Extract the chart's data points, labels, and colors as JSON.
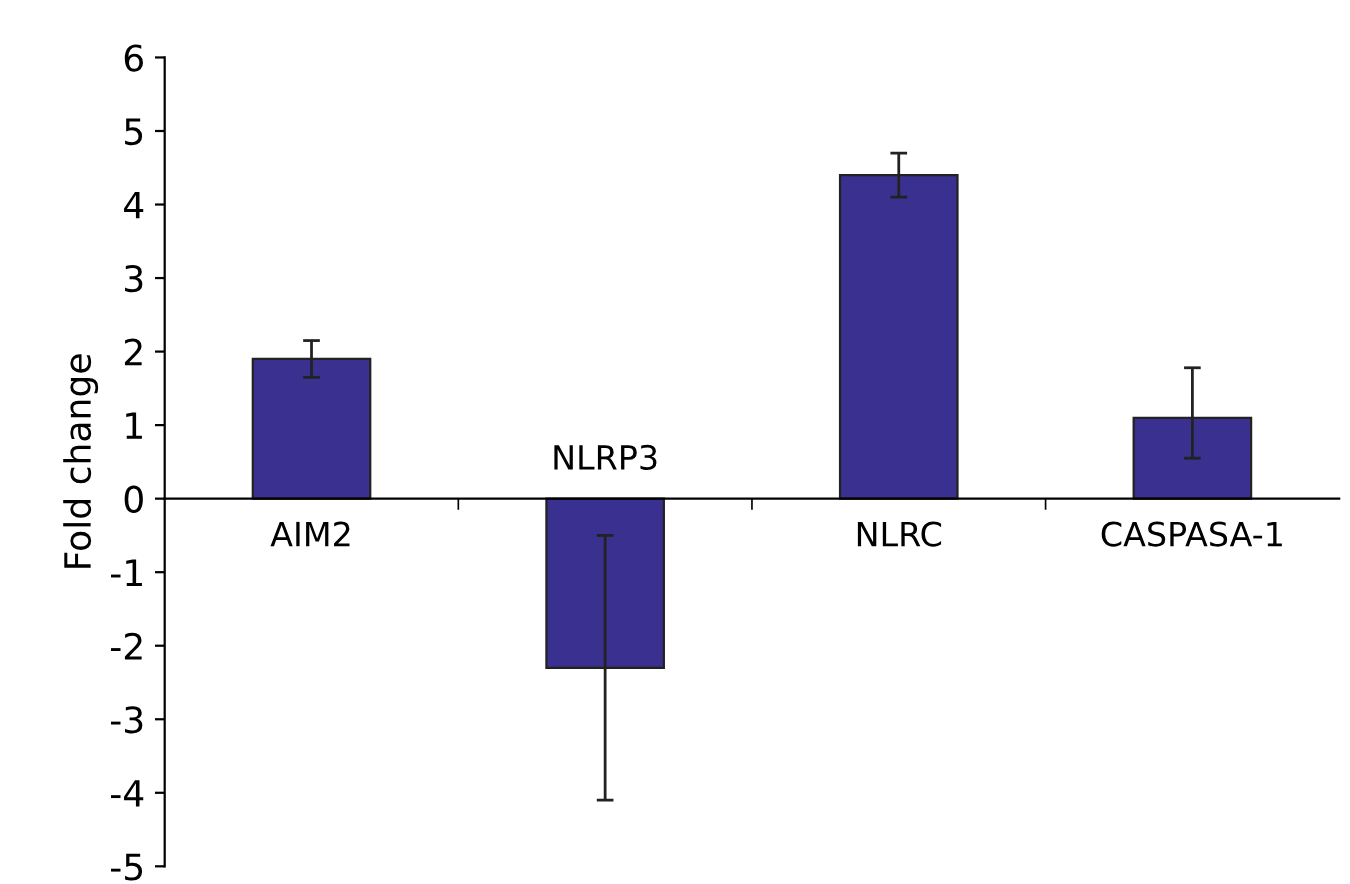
{
  "chart_data": {
    "type": "bar",
    "ylabel": "Fold change",
    "categories": [
      "AIM2",
      "NLRP3",
      "NLRC",
      "CASPASA-1"
    ],
    "values": [
      1.9,
      -2.3,
      4.4,
      1.1
    ],
    "errors": [
      0.25,
      1.8,
      0.3,
      [
        0.55,
        1.78
      ]
    ],
    "color": "#39308f",
    "ylim": [
      -5,
      6
    ],
    "yticks": [
      -5,
      -4,
      -3,
      -2,
      -1,
      0,
      1,
      2,
      3,
      4,
      5,
      6
    ],
    "grid": false,
    "legend": false
  }
}
